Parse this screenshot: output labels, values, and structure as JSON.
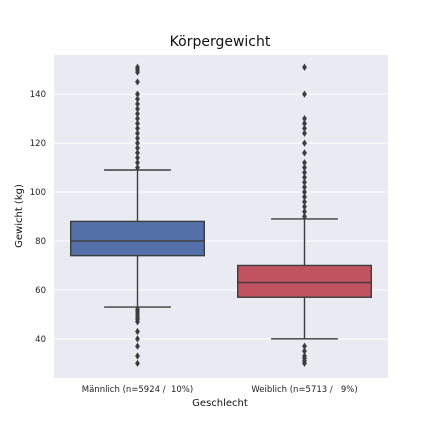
{
  "chart_data": {
    "type": "box",
    "title": "Körpergewicht",
    "xlabel": "Geschlecht",
    "ylabel": "Gewicht (kg)",
    "ylim": [
      24,
      156
    ],
    "yticks": [
      40,
      60,
      80,
      100,
      120,
      140
    ],
    "grid": true,
    "categories": [
      "Männlich (n=5924 /  10%)",
      "Weiblich (n=5713 /   9%)"
    ],
    "boxes": [
      {
        "q1": 74,
        "median": 80,
        "q3": 88,
        "whisker_low": 53,
        "whisker_high": 109,
        "outliers": [
          30,
          33,
          37,
          40,
          43,
          47,
          48,
          49,
          50,
          51,
          52,
          110,
          112,
          114,
          116,
          118,
          120,
          122,
          124,
          126,
          128,
          130,
          132,
          134,
          136,
          138,
          140,
          145,
          149,
          150,
          151
        ],
        "color": "#5470a8"
      },
      {
        "q1": 57,
        "median": 63,
        "q3": 70,
        "whisker_low": 40,
        "whisker_high": 89,
        "outliers": [
          30,
          31,
          32,
          33,
          35,
          37,
          90,
          92,
          94,
          96,
          98,
          100,
          102,
          104,
          106,
          108,
          110,
          112,
          116,
          120,
          124,
          126,
          128,
          130,
          140,
          151
        ],
        "color": "#c0535f"
      }
    ]
  }
}
